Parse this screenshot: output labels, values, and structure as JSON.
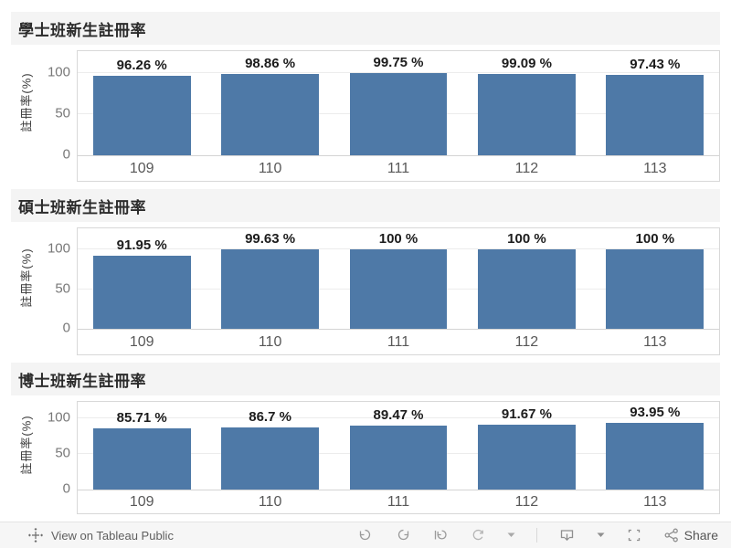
{
  "colors": {
    "bar": "#4e79a7",
    "title_bar_bg": "#f4f4f4",
    "gridline": "#ececec",
    "plot_border": "#d8d8d8"
  },
  "chart_data": [
    {
      "type": "bar",
      "title": "學士班新生註冊率",
      "ylabel": "註冊率(%)",
      "xlabel": "",
      "y_ticks": [
        "100",
        "50",
        "0"
      ],
      "ylim": [
        0,
        100
      ],
      "grid": "horizontal",
      "legend": "none",
      "categories": [
        "109",
        "110",
        "111",
        "112",
        "113"
      ],
      "values": [
        96.26,
        98.86,
        99.75,
        99.09,
        97.43
      ],
      "labels": [
        "96.26 %",
        "98.86 %",
        "99.75 %",
        "99.09 %",
        "97.43 %"
      ]
    },
    {
      "type": "bar",
      "title": "碩士班新生註冊率",
      "ylabel": "註冊率(%)",
      "xlabel": "",
      "y_ticks": [
        "100",
        "50",
        "0"
      ],
      "ylim": [
        0,
        100
      ],
      "grid": "horizontal",
      "legend": "none",
      "categories": [
        "109",
        "110",
        "111",
        "112",
        "113"
      ],
      "values": [
        91.95,
        99.63,
        100,
        100,
        100
      ],
      "labels": [
        "91.95 %",
        "99.63 %",
        "100 %",
        "100 %",
        "100 %"
      ]
    },
    {
      "type": "bar",
      "title": "博士班新生註冊率",
      "ylabel": "註冊率(%)",
      "xlabel": "",
      "y_ticks": [
        "100",
        "50",
        "0"
      ],
      "ylim": [
        0,
        100
      ],
      "grid": "horizontal",
      "legend": "none",
      "categories": [
        "109",
        "110",
        "111",
        "112",
        "113"
      ],
      "values": [
        85.71,
        86.7,
        89.47,
        91.67,
        93.95
      ],
      "labels": [
        "85.71 %",
        "86.7 %",
        "89.47 %",
        "91.67 %",
        "93.95 %"
      ]
    }
  ],
  "toolbar": {
    "view_on_label": "View on Tableau Public",
    "share_label": "Share",
    "icons": [
      "tableau-logo",
      "undo",
      "redo",
      "revert",
      "refresh",
      "caret",
      "download",
      "caret",
      "fullscreen",
      "share"
    ]
  }
}
